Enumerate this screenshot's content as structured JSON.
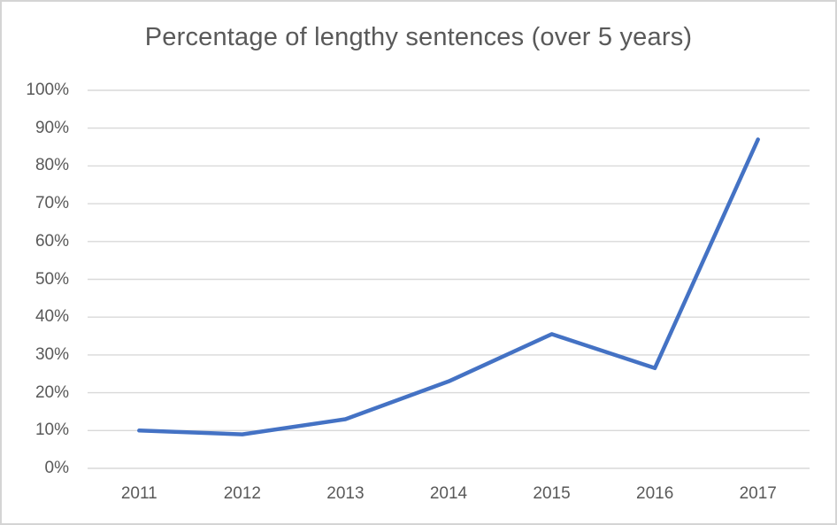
{
  "chart_data": {
    "type": "line",
    "title": "Percentage of lengthy sentences (over 5 years)",
    "categories": [
      "2011",
      "2012",
      "2013",
      "2014",
      "2015",
      "2016",
      "2017"
    ],
    "values": [
      10,
      9,
      13,
      23,
      35.5,
      26.5,
      87
    ],
    "xlabel": "",
    "ylabel": "",
    "ylim": [
      0,
      100
    ],
    "y_tick_step": 10,
    "y_tick_labels": [
      "0%",
      "10%",
      "20%",
      "30%",
      "40%",
      "50%",
      "60%",
      "70%",
      "80%",
      "90%",
      "100%"
    ],
    "grid": true,
    "legend": "none",
    "line_color": "#4472C4",
    "gridline_color": "#D9D9D9",
    "text_color": "#595959",
    "background_color": "#FFFFFF",
    "border_color": "#D4D4D4"
  }
}
